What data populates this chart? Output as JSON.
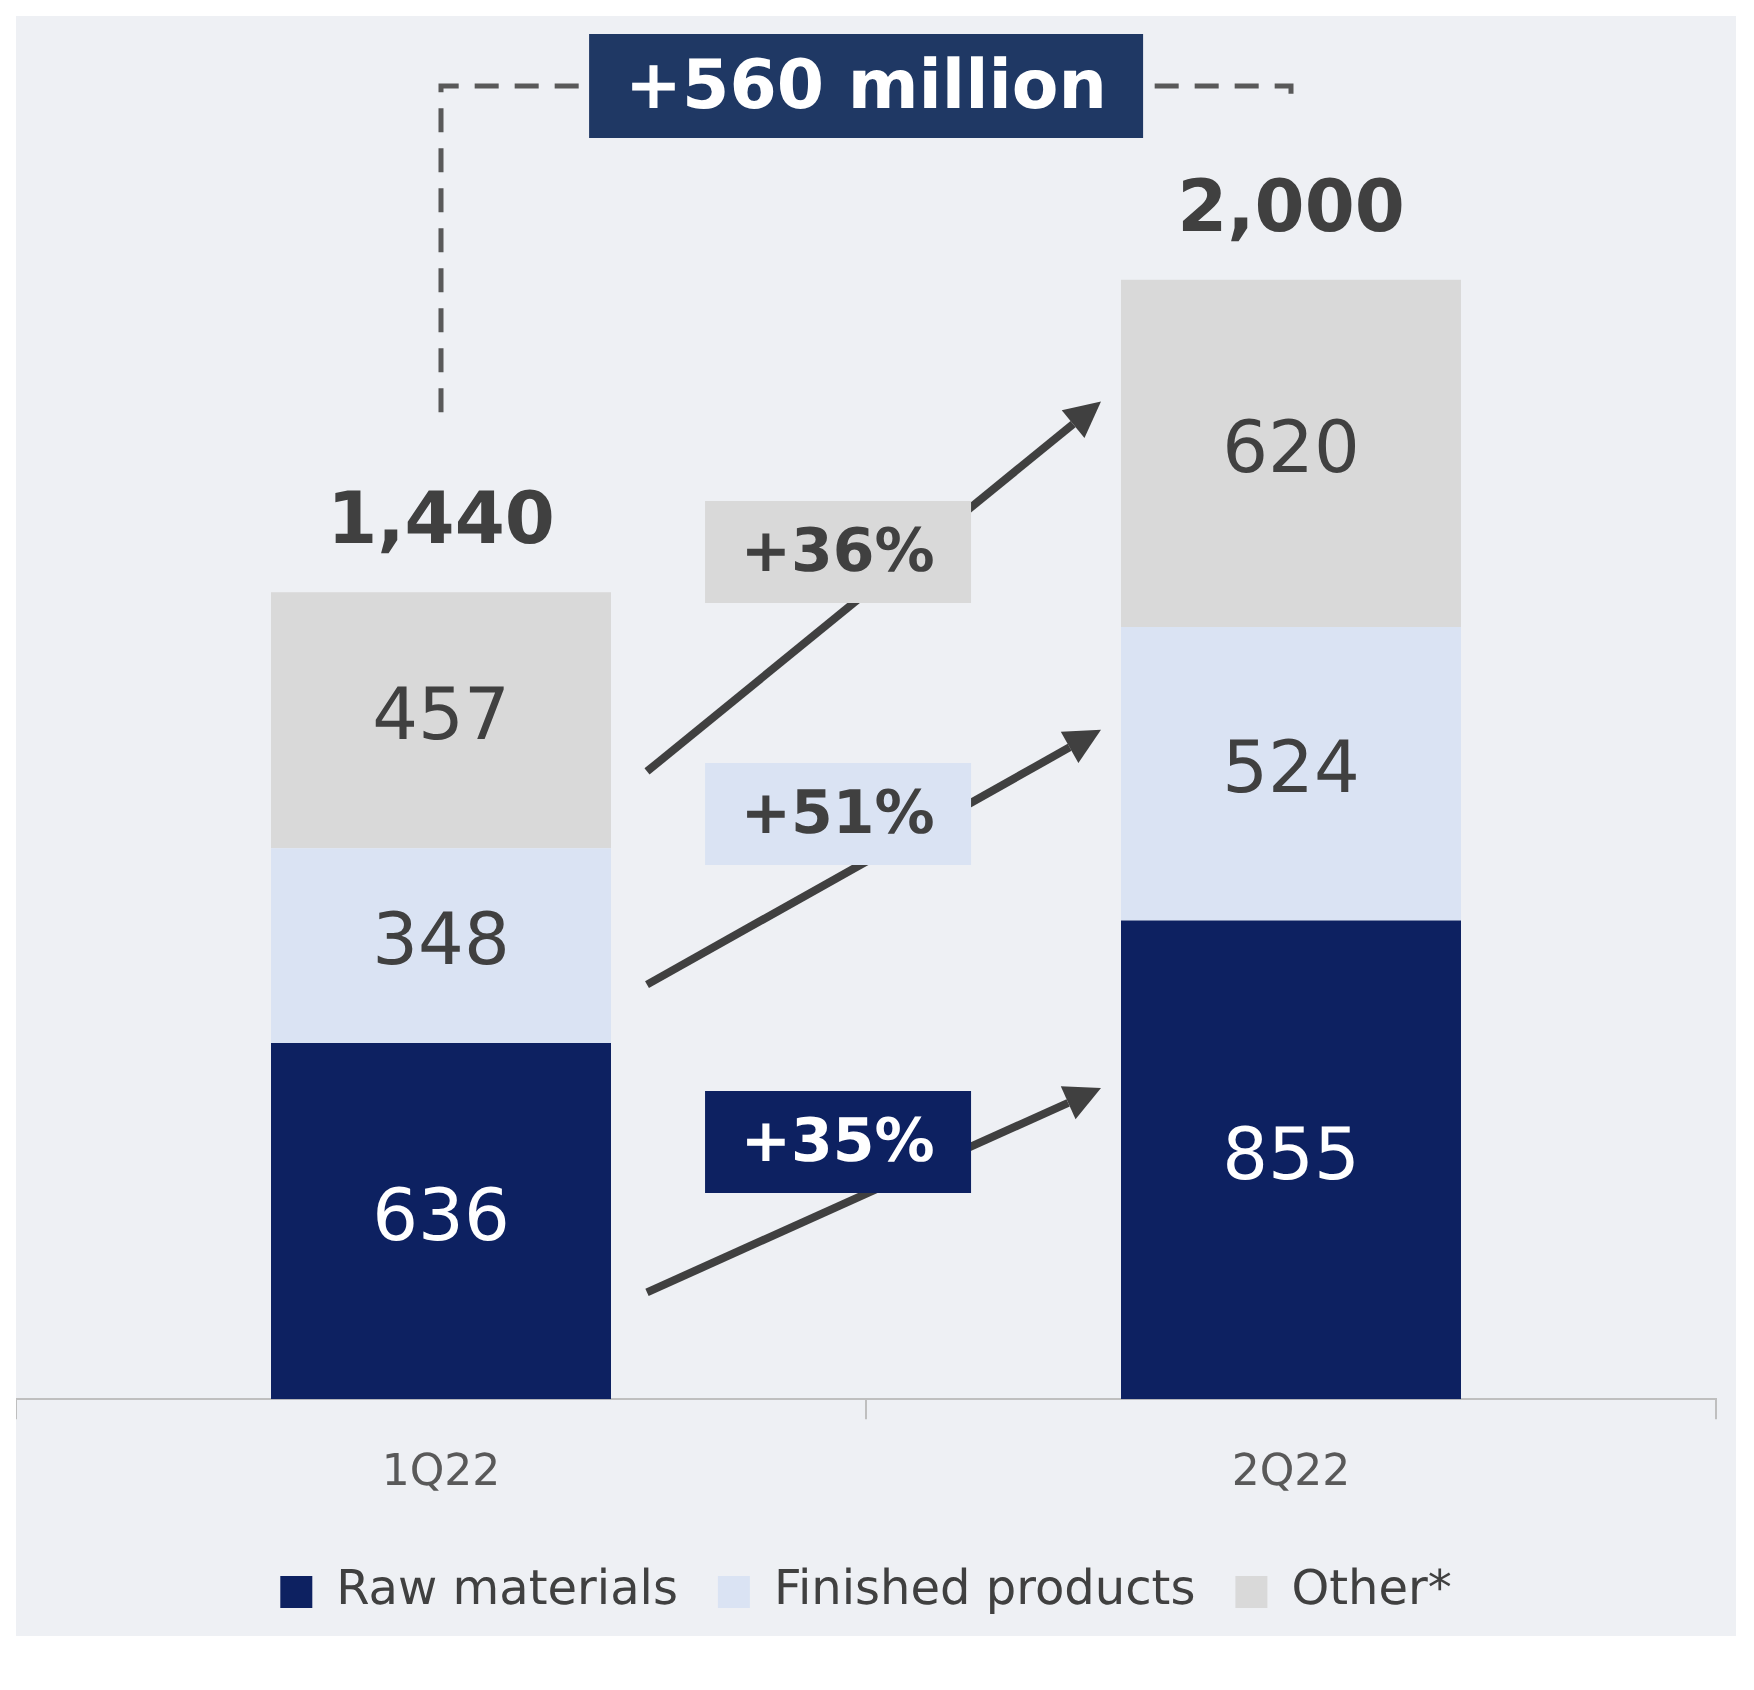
{
  "chart_data": {
    "type": "bar",
    "stacked": true,
    "categories": [
      "1Q22",
      "2Q22"
    ],
    "series": [
      {
        "name": "Raw materials",
        "color": "#0d2161",
        "values": [
          636,
          855
        ]
      },
      {
        "name": "Finished products",
        "color": "#dae3f3",
        "values": [
          348,
          524
        ]
      },
      {
        "name": "Other*",
        "color": "#d9d9d9",
        "values": [
          457,
          620
        ]
      }
    ],
    "data_labels": true,
    "totals": [
      "1,440",
      "2,000"
    ],
    "annotations": [
      "+560 million",
      "+36%",
      "+51%",
      "+35%"
    ],
    "legend": "bottom"
  }
}
